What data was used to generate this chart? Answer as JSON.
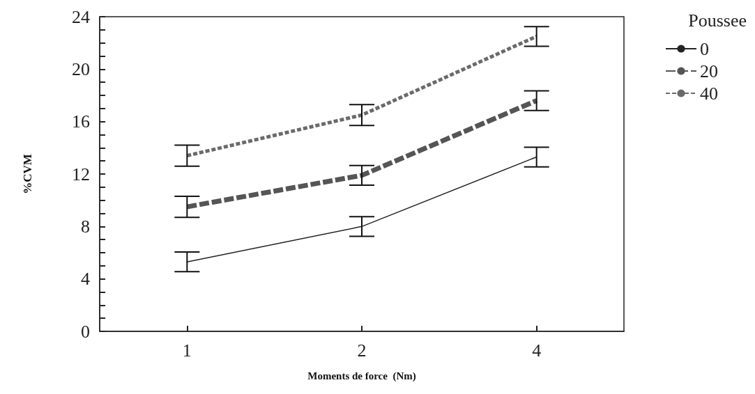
{
  "chart_data": {
    "type": "line",
    "xlabel": "Moments de force  (Nm)",
    "ylabel": "%CVM",
    "legend_title": "Poussee",
    "categories": [
      "1",
      "2",
      "4"
    ],
    "series": [
      {
        "name": "0",
        "color": "#222222",
        "line_style": "solid",
        "values": [
          5.3,
          8.0,
          13.3
        ],
        "errors": [
          0.75,
          0.75,
          0.75
        ]
      },
      {
        "name": "20",
        "color": "#555555",
        "line_style": "dashed",
        "values": [
          9.5,
          11.9,
          17.6
        ],
        "errors": [
          0.8,
          0.75,
          0.75
        ]
      },
      {
        "name": "40",
        "color": "#6a6a6a",
        "line_style": "dotted",
        "values": [
          13.4,
          16.5,
          22.5
        ],
        "errors": [
          0.8,
          0.8,
          0.75
        ]
      }
    ],
    "ylim": [
      0,
      24
    ],
    "yticks": [
      0,
      {
        "value": 1,
        "label": null
      },
      {
        "value": 2,
        "label": null
      },
      {
        "value": 3,
        "label": null
      },
      4,
      {
        "value": 5,
        "label": null
      },
      {
        "value": 6,
        "label": null
      },
      {
        "value": 7,
        "label": null
      },
      8,
      {
        "value": 9,
        "label": null
      },
      {
        "value": 10,
        "label": null
      },
      {
        "value": 11,
        "label": null
      },
      12,
      {
        "value": 13,
        "label": null
      },
      {
        "value": 14,
        "label": null
      },
      {
        "value": 15,
        "label": null
      },
      16,
      {
        "value": 17,
        "label": null
      },
      {
        "value": 18,
        "label": null
      },
      {
        "value": 19,
        "label": null
      },
      20,
      {
        "value": 21,
        "label": null
      },
      {
        "value": 22,
        "label": null
      },
      {
        "value": 23,
        "label": null
      },
      24
    ],
    "grid": false,
    "legend": "top right",
    "marker": "none"
  }
}
